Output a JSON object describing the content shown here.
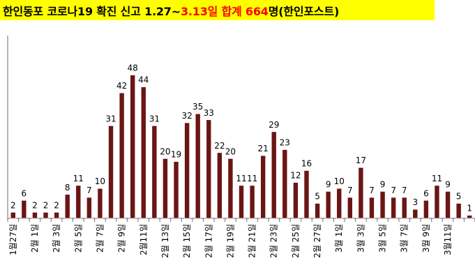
{
  "header": {
    "title_part1": "한인동포 코로나19 확진 신고 1.27~",
    "title_part2": "3.13일 합계 664",
    "title_part3": "명(한인포스트)"
  },
  "colors": {
    "title_background": "#ffff00",
    "title_highlight": "#ff0000",
    "bar": "#6b1515",
    "bar_stroke": "#ffffff",
    "axis": "#6d6d6d",
    "label": "#000000"
  },
  "chart_data": {
    "type": "bar",
    "title": "한인동포 코로나19 확진 신고 1.27~3.13일 합계 664명(한인포스트)",
    "xlabel": "",
    "ylabel": "",
    "ylim": [
      0,
      50
    ],
    "grid": false,
    "legend": "none",
    "data_labels": true,
    "tick_labels": [
      "1월27일",
      "2월 1일",
      "2월 3일",
      "2월 5일",
      "2월 7일",
      "2월 9일",
      "2월11일",
      "2월 13일",
      "2월 15일",
      "2월 17일",
      "2월 19일",
      "2월 21일",
      "2월 23일",
      "2월 25일",
      "2월 27일",
      "3월 1일",
      "3월 3일",
      "3월 5일",
      "3월 7일",
      "3월 9일",
      "3월11일"
    ],
    "values": [
      2,
      6,
      2,
      2,
      2,
      8,
      11,
      7,
      10,
      31,
      42,
      48,
      44,
      31,
      20,
      19,
      32,
      35,
      33,
      22,
      20,
      11,
      11,
      21,
      29,
      23,
      12,
      16,
      5,
      9,
      10,
      7,
      17,
      7,
      9,
      7,
      7,
      3,
      6,
      11,
      9,
      5,
      1
    ]
  }
}
